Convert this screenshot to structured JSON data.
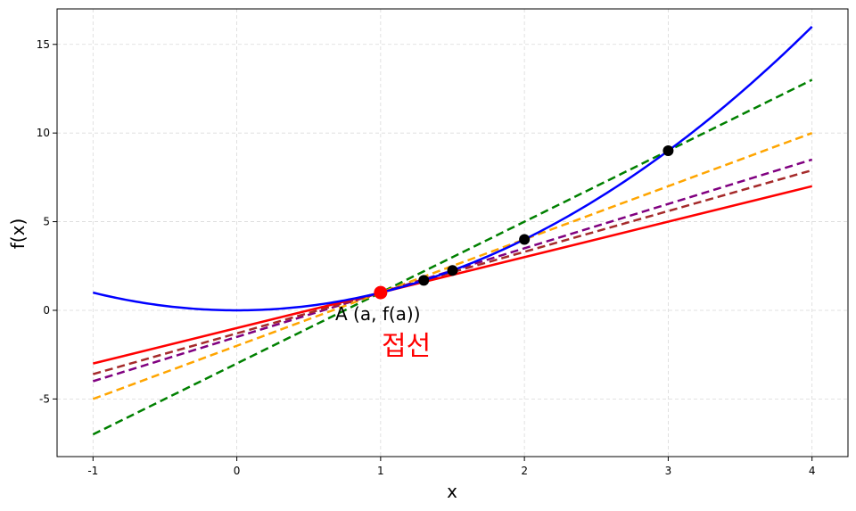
{
  "chart_data": {
    "type": "line",
    "xlabel": "x",
    "ylabel": "f(x)",
    "xlim": [
      -1.25,
      4.25
    ],
    "ylim": [
      -8.25,
      17.0
    ],
    "grid": true,
    "x_ticks": [
      -1,
      0,
      1,
      2,
      3,
      4
    ],
    "y_ticks": [
      -5,
      0,
      5,
      10,
      15
    ],
    "curve": {
      "function": "x^2",
      "x_range": [
        -1,
        4
      ],
      "color": "#0000ff"
    },
    "secant_lines": [
      {
        "through": [
          [
            1,
            1
          ],
          [
            3,
            9
          ]
        ],
        "slope": 4,
        "color": "#008000",
        "style": "dashed"
      },
      {
        "through": [
          [
            1,
            1
          ],
          [
            2,
            4
          ]
        ],
        "slope": 3,
        "color": "#ffa500",
        "style": "dashed"
      },
      {
        "through": [
          [
            1,
            1
          ],
          [
            1.5,
            2.25
          ]
        ],
        "slope": 2.5,
        "color": "#800080",
        "style": "dashed"
      },
      {
        "through": [
          [
            1,
            1
          ],
          [
            1.3,
            1.69
          ]
        ],
        "slope": 2.3,
        "color": "#a52a2a",
        "style": "dashed"
      }
    ],
    "tangent_line": {
      "point": [
        1,
        1
      ],
      "slope": 2,
      "color": "#ff0000",
      "style": "solid"
    },
    "points": [
      {
        "x": 1.3,
        "y": 1.69,
        "color": "#000000"
      },
      {
        "x": 1.5,
        "y": 2.25,
        "color": "#000000"
      },
      {
        "x": 2,
        "y": 4,
        "color": "#000000"
      },
      {
        "x": 3,
        "y": 9,
        "color": "#000000"
      }
    ],
    "point_a": {
      "x": 1,
      "y": 1,
      "color": "#ff0000"
    },
    "annotations": [
      {
        "text": "A (a, f(a))",
        "color": "#000000"
      },
      {
        "text": "접선",
        "color": "#ff0000"
      }
    ]
  }
}
